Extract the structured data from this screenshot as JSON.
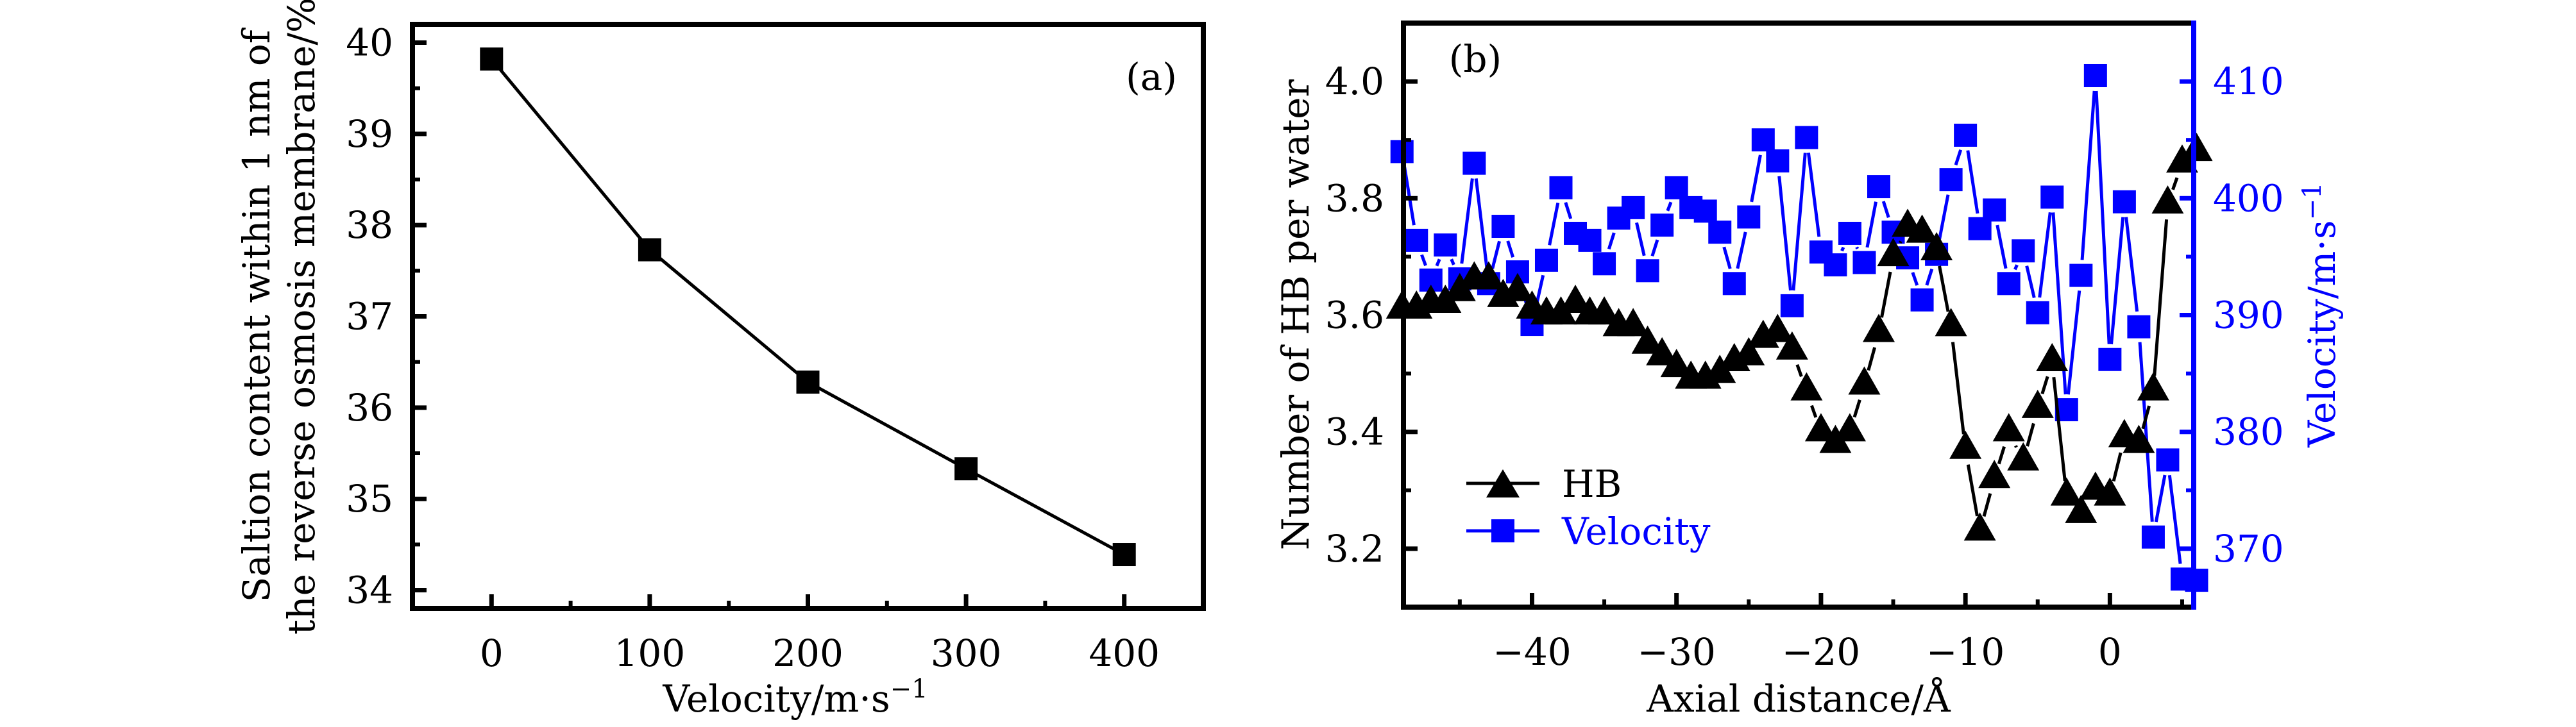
{
  "chart_data": [
    {
      "panel": "(a)",
      "type": "line",
      "title": "",
      "xlabel": "Velocity/m·s",
      "xlabel_sup": "−1",
      "ylabel_lines": [
        "Saltion content within 1 nm of",
        "the reverse osmosis membrane/%"
      ],
      "xlim": [
        -50,
        450
      ],
      "ylim": [
        33.8,
        40.2
      ],
      "x_ticks": [
        0,
        100,
        200,
        300,
        400
      ],
      "x_tick_labels": [
        "0",
        "100",
        "200",
        "300",
        "400"
      ],
      "x_minor_ticks": [
        -50,
        50,
        150,
        250,
        350
      ],
      "y_ticks": [
        34,
        35,
        36,
        37,
        38,
        39,
        40
      ],
      "y_tick_labels": [
        "34",
        "35",
        "36",
        "37",
        "38",
        "39",
        "40"
      ],
      "y_minor_ticks": [
        34.5,
        35.5,
        36.5,
        37.5,
        38.5,
        39.5
      ],
      "grid": false,
      "series": [
        {
          "name": "Saltion content",
          "marker": "square",
          "color": "#000000",
          "x": [
            0,
            100,
            200,
            300,
            400
          ],
          "values": [
            39.82,
            37.73,
            36.28,
            35.33,
            34.39
          ]
        }
      ]
    },
    {
      "panel": "(b)",
      "type": "line",
      "title": "",
      "xlabel": "Axial distance/Å",
      "ylabel": "Number of HB per water",
      "ylabel_right": "Velocity/m·s",
      "ylabel_right_sup": "−1",
      "xlim": [
        -48.9,
        5.8
      ],
      "ylim": [
        3.1,
        4.1
      ],
      "ylim_right": [
        365,
        415
      ],
      "x_ticks": [
        -40,
        -30,
        -20,
        -10,
        0
      ],
      "x_tick_labels": [
        "−40",
        "−30",
        "−20",
        "−10",
        "0"
      ],
      "x_minor_ticks": [
        -45,
        -35,
        -25,
        -15,
        -5,
        5
      ],
      "y_ticks": [
        3.2,
        3.4,
        3.6,
        3.8,
        4.0
      ],
      "y_tick_labels": [
        "3.2",
        "3.4",
        "3.6",
        "3.8",
        "4.0"
      ],
      "y_minor_ticks": [
        3.3,
        3.5,
        3.7,
        3.9
      ],
      "y_right_ticks": [
        370,
        380,
        390,
        400,
        410
      ],
      "y_right_tick_labels": [
        "370",
        "380",
        "390",
        "400",
        "410"
      ],
      "y_right_minor_ticks": [
        375,
        385,
        395,
        405
      ],
      "grid": false,
      "legend": {
        "placement": "bottom-left",
        "entries": [
          "HB",
          "Velocity"
        ]
      },
      "x": [
        -49,
        -48,
        -47,
        -46,
        -45,
        -44,
        -43,
        -42,
        -41,
        -40,
        -39,
        -38,
        -37,
        -36,
        -35,
        -34,
        -33,
        -32,
        -31,
        -30,
        -29,
        -28,
        -27,
        -26,
        -25,
        -24,
        -23,
        -22,
        -21,
        -20,
        -19,
        -18,
        -17,
        -16,
        -15,
        -14,
        -13,
        -12,
        -11,
        -10,
        -9,
        -8,
        -7,
        -6,
        -5,
        -4,
        -3,
        -2,
        -1,
        0,
        1,
        2,
        3,
        4,
        5,
        6
      ],
      "series": [
        {
          "name": "HB",
          "axis": "left",
          "marker": "triangle",
          "color": "#000000",
          "values": [
            3.61,
            3.61,
            3.62,
            3.62,
            3.64,
            3.66,
            3.66,
            3.63,
            3.64,
            3.61,
            3.6,
            3.6,
            3.62,
            3.6,
            3.6,
            3.58,
            3.58,
            3.55,
            3.53,
            3.51,
            3.49,
            3.49,
            3.5,
            3.52,
            3.53,
            3.56,
            3.57,
            3.54,
            3.47,
            3.4,
            3.38,
            3.4,
            3.48,
            3.57,
            3.7,
            3.75,
            3.74,
            3.71,
            3.58,
            3.37,
            3.23,
            3.32,
            3.4,
            3.35,
            3.44,
            3.52,
            3.29,
            3.26,
            3.3,
            3.29,
            3.39,
            3.38,
            3.47,
            3.79,
            3.86,
            3.88
          ]
        },
        {
          "name": "Velocity",
          "axis": "right",
          "marker": "square",
          "color": "#0000ff",
          "values": [
            404.0,
            396.4,
            393.0,
            396.0,
            393.1,
            403.0,
            392.7,
            397.6,
            393.7,
            389.2,
            394.7,
            400.9,
            397.0,
            396.4,
            394.4,
            398.3,
            399.2,
            393.8,
            397.7,
            400.9,
            399.2,
            398.9,
            397.1,
            392.7,
            398.4,
            405.0,
            403.2,
            390.8,
            405.2,
            395.4,
            394.3,
            397.0,
            394.5,
            401.0,
            397.1,
            394.9,
            391.3,
            395.2,
            401.6,
            405.4,
            397.4,
            399.0,
            392.7,
            395.5,
            390.2,
            400.1,
            381.9,
            393.4,
            410.5,
            386.2,
            399.7,
            389.0,
            371.0,
            377.6,
            367.4,
            367.3
          ]
        }
      ]
    }
  ]
}
